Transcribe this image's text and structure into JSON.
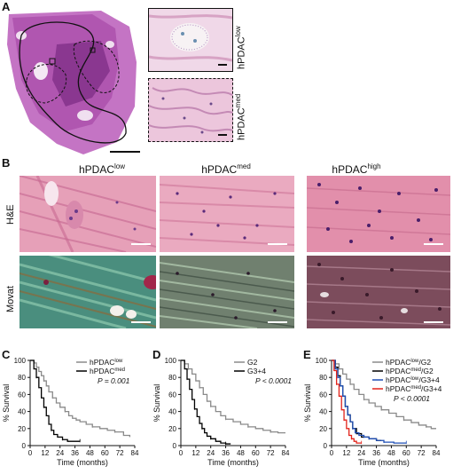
{
  "panel_letters": {
    "a": "A",
    "b": "B",
    "c": "C",
    "d": "D",
    "e": "E"
  },
  "panelA": {
    "inset_top_label": {
      "base": "hPDAC",
      "sup": "low"
    },
    "inset_bottom_label": {
      "base": "hPDAC",
      "sup": "med"
    }
  },
  "panelB": {
    "columns": [
      {
        "base": "hPDAC",
        "sup": "low"
      },
      {
        "base": "hPDAC",
        "sup": "med"
      },
      {
        "base": "hPDAC",
        "sup": "high"
      }
    ],
    "rows": [
      "H&E",
      "Movat"
    ]
  },
  "chart_data": [
    {
      "type": "line",
      "panel": "C",
      "xlabel": "Time (months)",
      "ylabel": "% Survival",
      "xticks": [
        0,
        12,
        24,
        36,
        48,
        60,
        72,
        84
      ],
      "yticks": [
        0,
        20,
        40,
        60,
        80,
        100
      ],
      "xlim": [
        0,
        84
      ],
      "ylim": [
        0,
        100
      ],
      "legend": [
        {
          "base": "hPDAC",
          "sup": "low",
          "color": "#8a8a8a"
        },
        {
          "base": "hPDAC",
          "sup": "med",
          "color": "#000000"
        }
      ],
      "pvalue": "P = 0.001",
      "series": [
        {
          "color": "#8a8a8a",
          "x": [
            0,
            3,
            5,
            7,
            9,
            11,
            13,
            15,
            18,
            21,
            24,
            28,
            31,
            34,
            37,
            40,
            45,
            50,
            56,
            62,
            68,
            75,
            80
          ],
          "y": [
            100,
            97,
            92,
            87,
            82,
            76,
            70,
            63,
            56,
            50,
            45,
            40,
            35,
            32,
            30,
            28,
            25,
            22,
            20,
            18,
            16,
            12,
            10
          ]
        },
        {
          "color": "#000000",
          "x": [
            0,
            3,
            5,
            7,
            9,
            11,
            13,
            15,
            17,
            19,
            22,
            26,
            30,
            34,
            40
          ],
          "y": [
            100,
            90,
            80,
            68,
            56,
            45,
            35,
            25,
            18,
            13,
            10,
            7,
            5,
            5,
            5
          ]
        }
      ]
    },
    {
      "type": "line",
      "panel": "D",
      "xlabel": "Time (months)",
      "ylabel": "% Survival",
      "xticks": [
        0,
        12,
        24,
        36,
        48,
        60,
        72,
        84
      ],
      "yticks": [
        0,
        20,
        40,
        60,
        80,
        100
      ],
      "xlim": [
        0,
        84
      ],
      "ylim": [
        0,
        100
      ],
      "legend": [
        {
          "base": "G2",
          "sup": "",
          "color": "#8a8a8a"
        },
        {
          "base": "G3+4",
          "sup": "",
          "color": "#000000"
        }
      ],
      "pvalue": "P < 0.0001",
      "series": [
        {
          "color": "#8a8a8a",
          "x": [
            0,
            3,
            6,
            9,
            12,
            15,
            18,
            21,
            24,
            28,
            32,
            36,
            42,
            48,
            54,
            60,
            66,
            72,
            78,
            84
          ],
          "y": [
            100,
            96,
            90,
            84,
            76,
            68,
            60,
            52,
            46,
            40,
            35,
            31,
            28,
            25,
            22,
            20,
            18,
            16,
            15,
            15
          ]
        },
        {
          "color": "#000000",
          "x": [
            0,
            3,
            5,
            7,
            9,
            11,
            13,
            15,
            17,
            19,
            21,
            24,
            28,
            32,
            36,
            40
          ],
          "y": [
            100,
            90,
            78,
            66,
            54,
            43,
            34,
            26,
            20,
            15,
            11,
            8,
            5,
            3,
            2,
            2
          ]
        }
      ]
    },
    {
      "type": "line",
      "panel": "E",
      "xlabel": "Time (months)",
      "ylabel": "% Survival",
      "xticks": [
        0,
        12,
        24,
        36,
        48,
        60,
        72,
        84
      ],
      "yticks": [
        0,
        20,
        40,
        60,
        80,
        100
      ],
      "xlim": [
        0,
        84
      ],
      "ylim": [
        0,
        100
      ],
      "legend": [
        {
          "base": "hPDAC",
          "sup": "low",
          "suffix": "/G2",
          "color": "#8a8a8a"
        },
        {
          "base": "hPDAC",
          "sup": "med",
          "suffix": "/G2",
          "color": "#000000"
        },
        {
          "base": "hPDAC",
          "sup": "low",
          "suffix": "/G3+4",
          "color": "#1f4fb5"
        },
        {
          "base": "hPDAC",
          "sup": "med",
          "suffix": "/G3+4",
          "color": "#e2231a"
        }
      ],
      "pvalue": "P < 0.0001",
      "series": [
        {
          "color": "#8a8a8a",
          "x": [
            0,
            3,
            6,
            9,
            12,
            15,
            18,
            22,
            26,
            30,
            35,
            40,
            46,
            52,
            58,
            64,
            70,
            76,
            80,
            84
          ],
          "y": [
            100,
            96,
            90,
            84,
            78,
            72,
            66,
            60,
            54,
            50,
            46,
            42,
            38,
            34,
            30,
            27,
            24,
            22,
            20,
            20
          ]
        },
        {
          "color": "#000000",
          "x": [
            0,
            3,
            5,
            7,
            9,
            11,
            13,
            15,
            17,
            20,
            24,
            30,
            36,
            40
          ],
          "y": [
            100,
            92,
            82,
            70,
            58,
            46,
            36,
            28,
            20,
            14,
            10,
            8,
            6,
            6
          ]
        },
        {
          "color": "#1f4fb5",
          "x": [
            0,
            3,
            5,
            7,
            9,
            11,
            13,
            15,
            17,
            19,
            22,
            26,
            30,
            36,
            42,
            50,
            56,
            60
          ],
          "y": [
            100,
            90,
            80,
            70,
            58,
            46,
            36,
            28,
            20,
            15,
            12,
            10,
            8,
            6,
            4,
            3,
            3,
            3
          ]
        },
        {
          "color": "#e2231a",
          "x": [
            0,
            2,
            4,
            6,
            8,
            10,
            12,
            14,
            16,
            18,
            20,
            24
          ],
          "y": [
            100,
            88,
            72,
            58,
            42,
            30,
            20,
            12,
            8,
            5,
            3,
            3
          ]
        }
      ]
    }
  ]
}
